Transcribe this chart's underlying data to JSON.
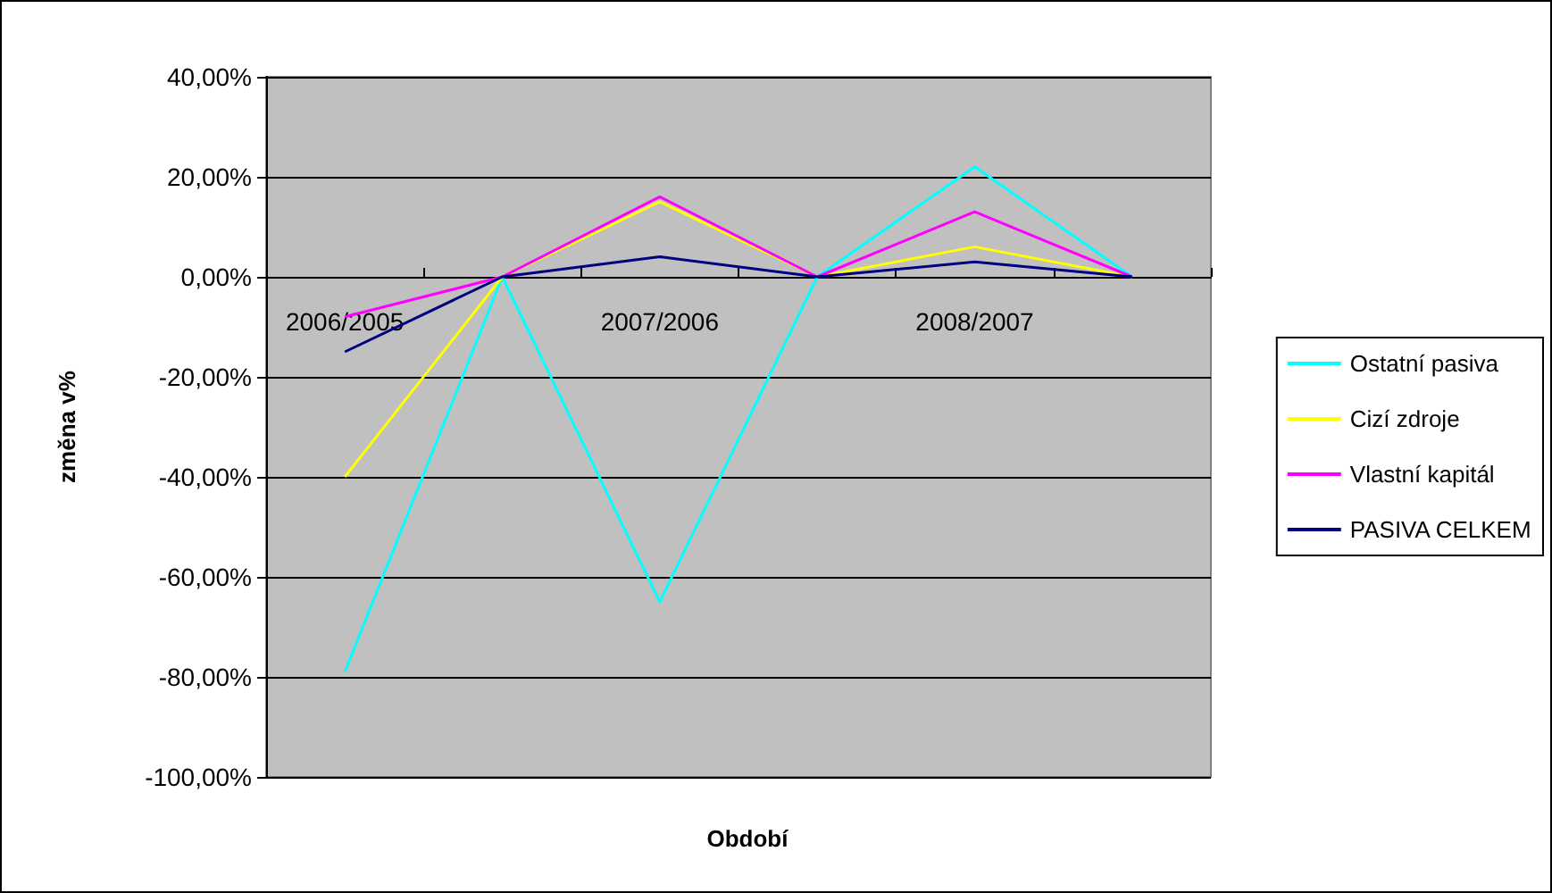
{
  "chart_data": {
    "type": "line",
    "xlabel": "Období",
    "ylabel": "změna v%",
    "categories": [
      "2006/2005",
      null,
      "2007/2006",
      null,
      "2008/2007",
      null
    ],
    "series": [
      {
        "name": "Ostatní pasiva",
        "color": "#00ffff",
        "values": [
          -79,
          0,
          -65,
          0,
          22,
          0
        ]
      },
      {
        "name": "Cizí zdroje",
        "color": "#ffff00",
        "values": [
          -40,
          0,
          15,
          0,
          6,
          0
        ]
      },
      {
        "name": "Vlastní kapitál",
        "color": "#ff00ff",
        "values": [
          -8,
          0,
          16,
          0,
          13,
          0
        ]
      },
      {
        "name": "PASIVA CELKEM",
        "color": "#000080",
        "values": [
          -15,
          0,
          4,
          0,
          3,
          0
        ]
      }
    ],
    "ylim": [
      -100,
      40
    ],
    "yticks": [
      {
        "value": -100,
        "label": "-100,00%"
      },
      {
        "value": -80,
        "label": "-80,00%"
      },
      {
        "value": -60,
        "label": "-60,00%"
      },
      {
        "value": -40,
        "label": "-40,00%"
      },
      {
        "value": -20,
        "label": "-20,00%"
      },
      {
        "value": 0,
        "label": "0,00%"
      },
      {
        "value": 20,
        "label": "20,00%"
      },
      {
        "value": 40,
        "label": "40,00%"
      }
    ],
    "grid": "y",
    "legend": "right",
    "marker": "none",
    "line_style": "solid"
  }
}
